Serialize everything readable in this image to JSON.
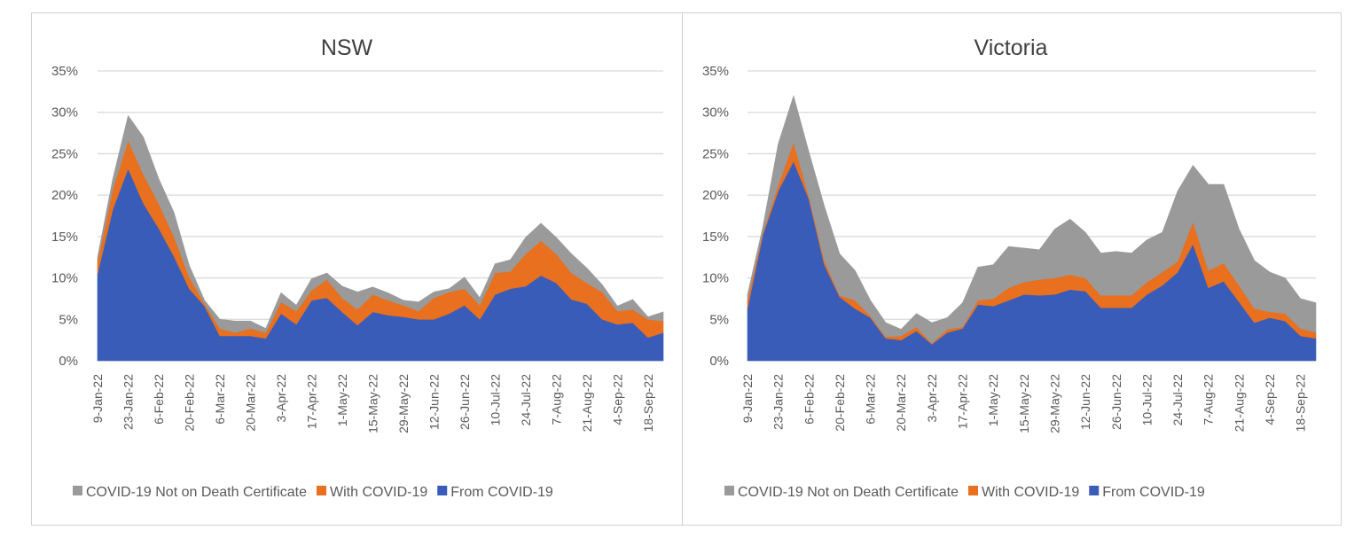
{
  "colors": {
    "not_on_certificate": "#9a9a9a",
    "with_covid": "#e8701e",
    "from_covid": "#3a5cb9",
    "grid": "#d9d9d9"
  },
  "legend": [
    "COVID-19 Not on Death Certificate",
    "With COVID-19",
    "From COVID-19"
  ],
  "chart_data": [
    {
      "type": "area",
      "stacked": true,
      "title": "NSW",
      "xlabel": "",
      "ylabel": "",
      "ylim": [
        0,
        35
      ],
      "yticks": [
        "0%",
        "5%",
        "10%",
        "15%",
        "20%",
        "25%",
        "30%",
        "35%"
      ],
      "grid": true,
      "legend_position": "bottom",
      "x": [
        "9-Jan-22",
        "16-Jan-22",
        "23-Jan-22",
        "30-Jan-22",
        "6-Feb-22",
        "13-Feb-22",
        "20-Feb-22",
        "27-Feb-22",
        "6-Mar-22",
        "13-Mar-22",
        "20-Mar-22",
        "27-Mar-22",
        "3-Apr-22",
        "10-Apr-22",
        "17-Apr-22",
        "24-Apr-22",
        "1-May-22",
        "8-May-22",
        "15-May-22",
        "22-May-22",
        "29-May-22",
        "5-Jun-22",
        "12-Jun-22",
        "19-Jun-22",
        "26-Jun-22",
        "3-Jul-22",
        "10-Jul-22",
        "17-Jul-22",
        "24-Jul-22",
        "31-Jul-22",
        "7-Aug-22",
        "14-Aug-22",
        "21-Aug-22",
        "28-Aug-22",
        "4-Sep-22",
        "11-Sep-22",
        "18-Sep-22",
        "25-Sep-22"
      ],
      "xticks": [
        "9-Jan-22",
        "23-Jan-22",
        "6-Feb-22",
        "20-Feb-22",
        "6-Mar-22",
        "20-Mar-22",
        "3-Apr-22",
        "17-Apr-22",
        "1-May-22",
        "15-May-22",
        "29-May-22",
        "12-Jun-22",
        "26-Jun-22",
        "10-Jul-22",
        "24-Jul-22",
        "7-Aug-22",
        "21-Aug-22",
        "4-Sep-22",
        "18-Sep-22"
      ],
      "series": [
        {
          "name": "From COVID-19",
          "values": [
            10.5,
            18.3,
            23.2,
            19,
            16,
            12.6,
            8.7,
            6.6,
            3,
            3,
            3,
            2.7,
            5.7,
            4.4,
            7.3,
            7.6,
            5.9,
            4.3,
            5.9,
            5.5,
            5.3,
            5,
            5,
            5.7,
            6.7,
            5,
            8,
            8.7,
            9,
            10.3,
            9.4,
            7.4,
            6.9,
            5,
            4.4,
            4.6,
            2.8,
            3.4
          ]
        },
        {
          "name": "With COVID-19",
          "values": [
            1.5,
            2.4,
            3.4,
            3.5,
            3,
            2.4,
            1.4,
            0.3,
            0.9,
            0.4,
            0.9,
            0.7,
            1.4,
            1.6,
            1.2,
            2.2,
            1.7,
            1.9,
            2.1,
            1.8,
            1.4,
            1,
            2.6,
            2.6,
            2,
            1.7,
            2.6,
            2.1,
            3.9,
            4.2,
            3.5,
            3.2,
            2.5,
            3.3,
            1.6,
            1.6,
            2.2,
            1.4
          ]
        },
        {
          "name": "COVID-19 Not on Death Certificate",
          "values": [
            0.5,
            1.3,
            3,
            4.5,
            3,
            2.9,
            1.4,
            0.4,
            1.1,
            1.4,
            0.9,
            0.5,
            1.1,
            0.7,
            1.4,
            0.8,
            1.4,
            2.1,
            0.9,
            0.9,
            0.6,
            1.1,
            0.7,
            0.4,
            1.4,
            0.9,
            1.1,
            1.4,
            2,
            2.1,
            2,
            2.3,
            1.8,
            0.9,
            0.6,
            1.2,
            0.3,
            1.1
          ]
        }
      ]
    },
    {
      "type": "area",
      "stacked": true,
      "title": "Victoria",
      "xlabel": "",
      "ylabel": "",
      "ylim": [
        0,
        35
      ],
      "yticks": [
        "0%",
        "5%",
        "10%",
        "15%",
        "20%",
        "25%",
        "30%",
        "35%"
      ],
      "grid": true,
      "legend_position": "bottom",
      "x": [
        "9-Jan-22",
        "16-Jan-22",
        "23-Jan-22",
        "30-Jan-22",
        "6-Feb-22",
        "13-Feb-22",
        "20-Feb-22",
        "27-Feb-22",
        "6-Mar-22",
        "13-Mar-22",
        "20-Mar-22",
        "27-Mar-22",
        "3-Apr-22",
        "10-Apr-22",
        "17-Apr-22",
        "24-Apr-22",
        "1-May-22",
        "8-May-22",
        "15-May-22",
        "22-May-22",
        "29-May-22",
        "5-Jun-22",
        "12-Jun-22",
        "19-Jun-22",
        "26-Jun-22",
        "3-Jul-22",
        "10-Jul-22",
        "17-Jul-22",
        "24-Jul-22",
        "31-Jul-22",
        "7-Aug-22",
        "14-Aug-22",
        "21-Aug-22",
        "28-Aug-22",
        "4-Sep-22",
        "11-Sep-22",
        "18-Sep-22",
        "25-Sep-22"
      ],
      "xticks": [
        "9-Jan-22",
        "23-Jan-22",
        "6-Feb-22",
        "20-Feb-22",
        "6-Mar-22",
        "20-Mar-22",
        "3-Apr-22",
        "17-Apr-22",
        "1-May-22",
        "15-May-22",
        "29-May-22",
        "12-Jun-22",
        "26-Jun-22",
        "10-Jul-22",
        "24-Jul-22",
        "7-Aug-22",
        "21-Aug-22",
        "4-Sep-22",
        "18-Sep-22"
      ],
      "series": [
        {
          "name": "From COVID-19",
          "values": [
            6.3,
            15.2,
            20.5,
            24.1,
            19.5,
            11.6,
            7.7,
            6.3,
            5.2,
            2.7,
            2.5,
            3.6,
            2,
            3.4,
            3.9,
            6.8,
            6.6,
            7.3,
            8,
            7.9,
            8,
            8.6,
            8.4,
            6.4,
            6.4,
            6.4,
            8,
            9.1,
            10.7,
            14.1,
            8.8,
            9.6,
            7.1,
            4.6,
            5.2,
            4.8,
            3,
            2.7
          ]
        },
        {
          "name": "With COVID-19",
          "values": [
            1,
            0.3,
            0.7,
            2.3,
            0.3,
            0.5,
            0.2,
            1,
            0.2,
            0.2,
            0.5,
            0.5,
            0.1,
            0.4,
            0.2,
            0.5,
            0.9,
            1.5,
            1.5,
            1.9,
            2,
            1.8,
            1.6,
            1.5,
            1.5,
            1.5,
            1.5,
            1.6,
            1.3,
            2.7,
            2.1,
            2.2,
            2,
            1.7,
            0.7,
            0.9,
            0.9,
            0.7
          ]
        },
        {
          "name": "COVID-19 Not on Death Certificate",
          "values": [
            0.7,
            0.7,
            5,
            5.6,
            5.4,
            6.6,
            5,
            3.6,
            1.9,
            1.7,
            0.8,
            1.6,
            2.5,
            1.4,
            2.9,
            4,
            4.1,
            5,
            4.1,
            3.6,
            5.9,
            6.7,
            5.5,
            5.1,
            5.3,
            5.1,
            5.1,
            4.8,
            8.5,
            6.8,
            10.4,
            9.5,
            6.8,
            5.8,
            4.8,
            4.3,
            3.6,
            3.6
          ]
        }
      ]
    }
  ]
}
